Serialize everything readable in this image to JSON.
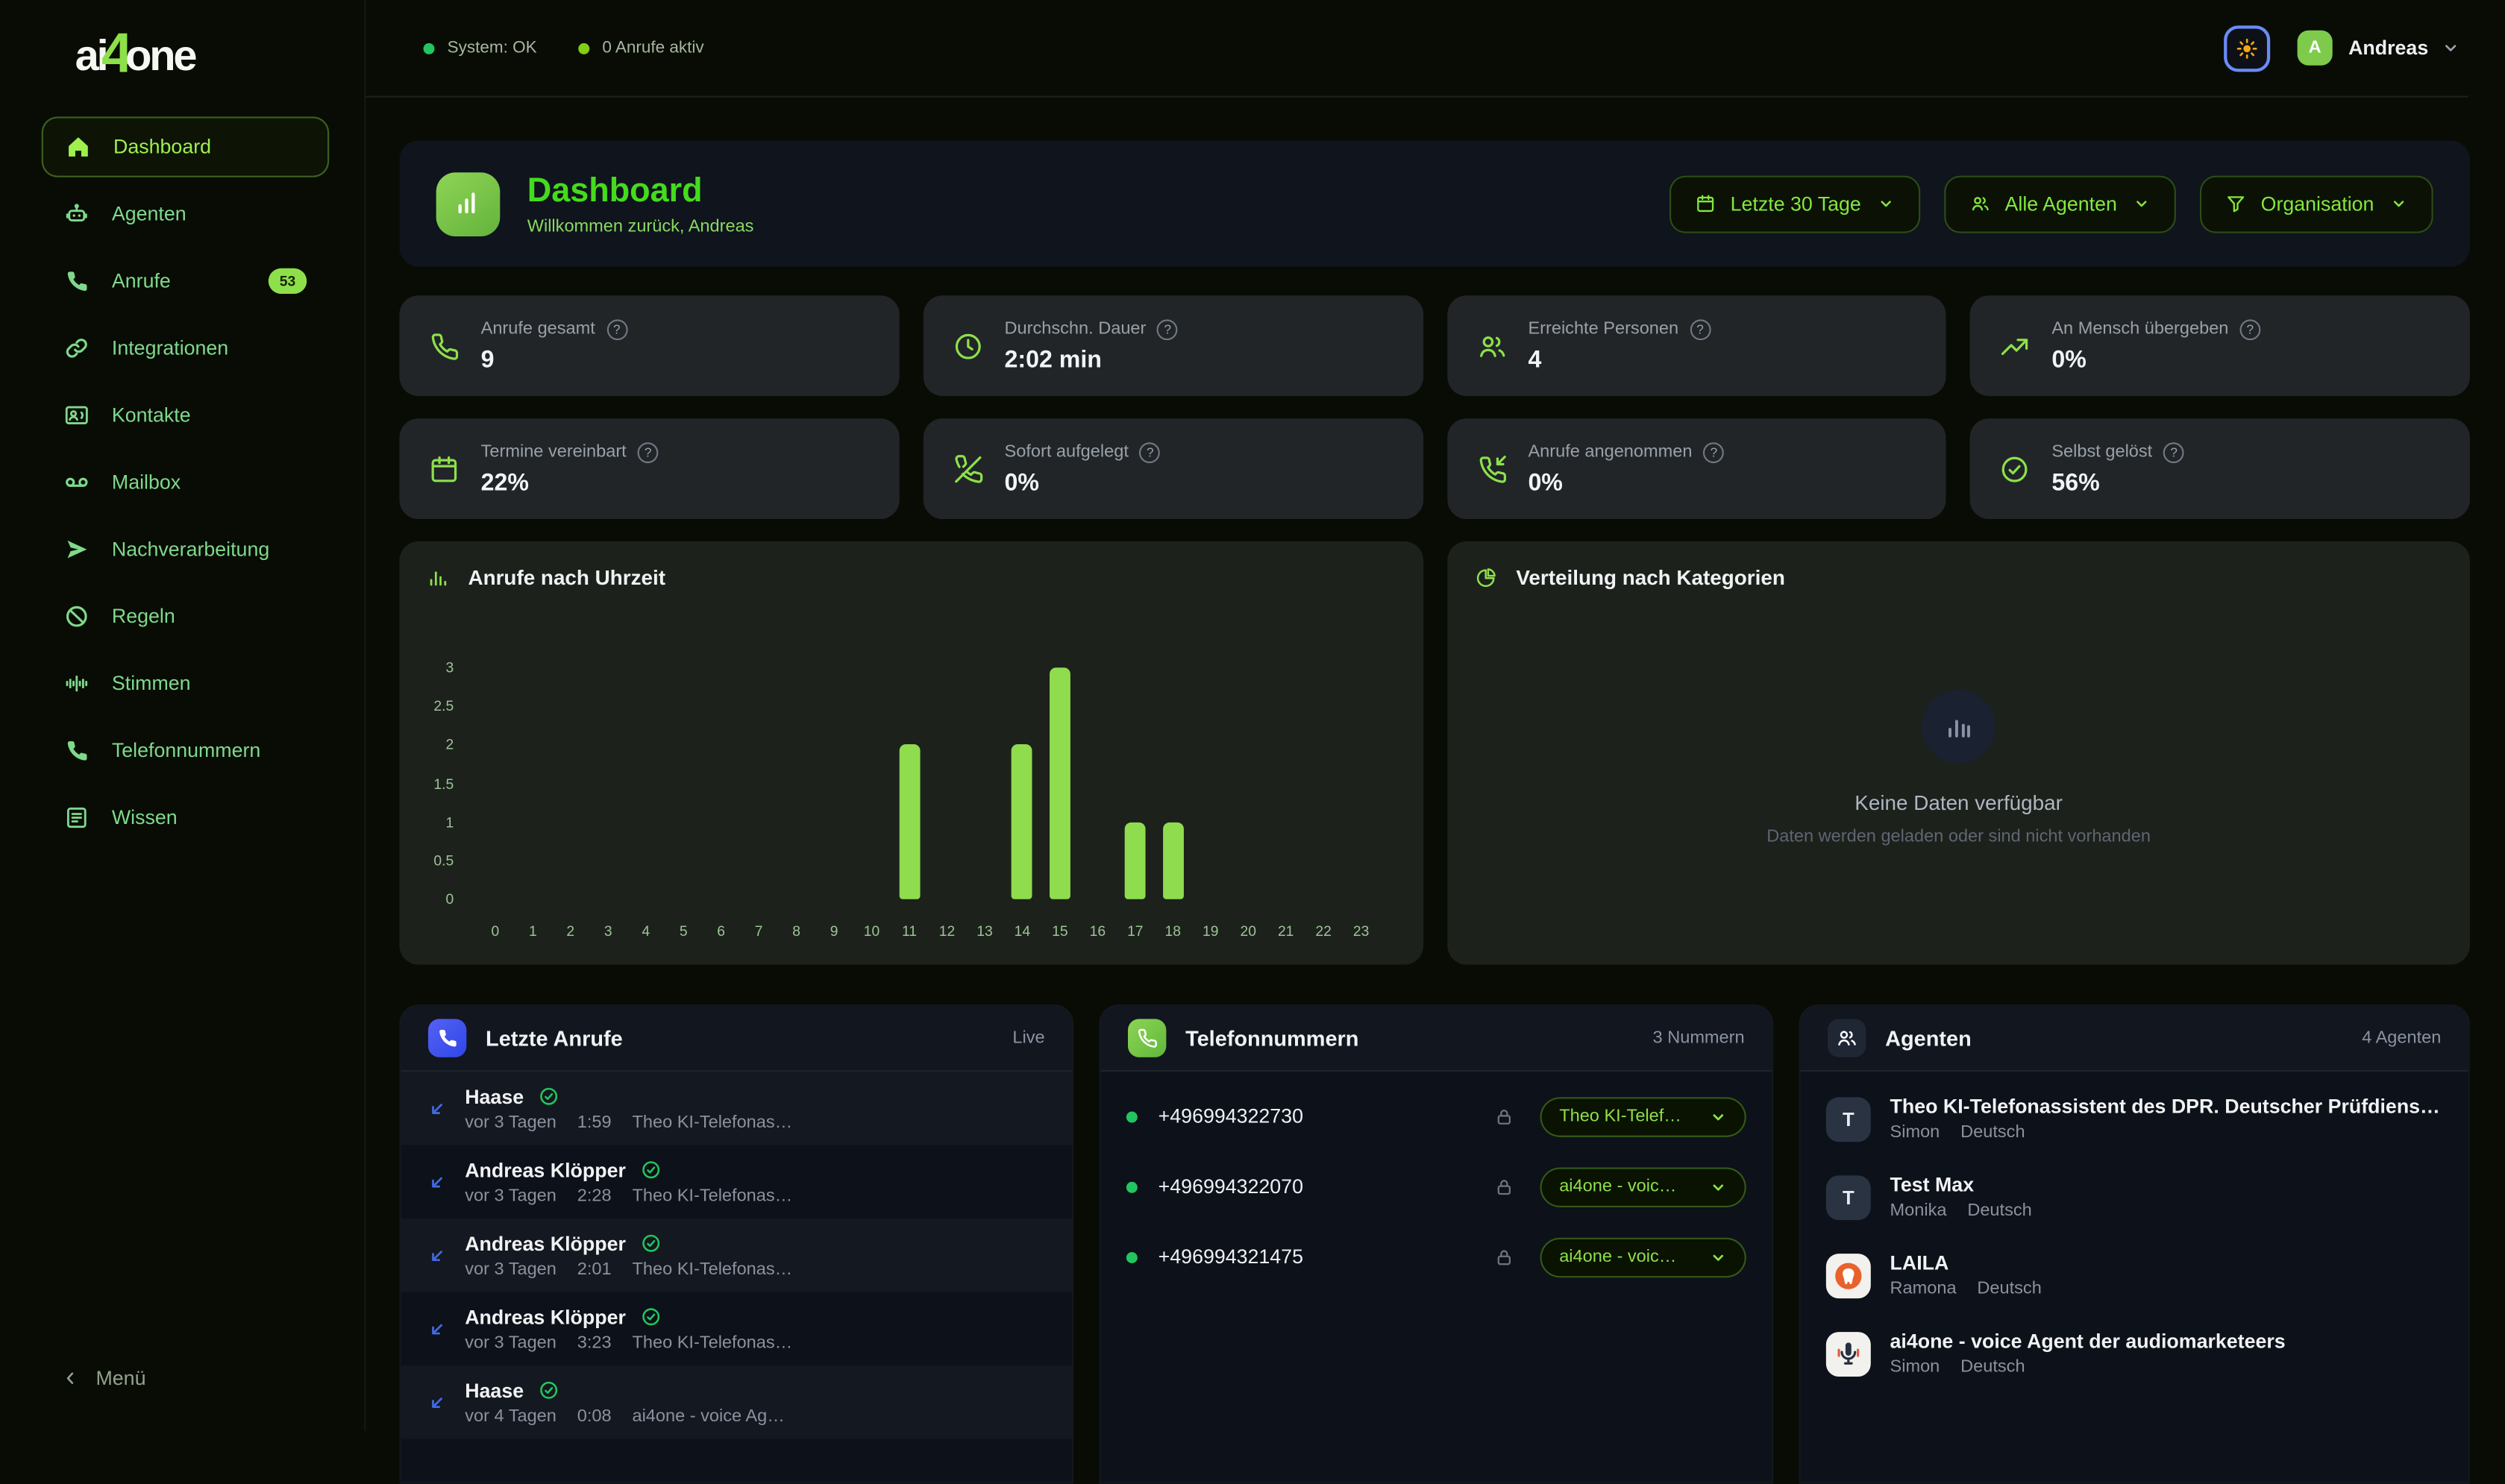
{
  "logo": {
    "part1": "ai",
    "part2": "4",
    "part3": "one"
  },
  "topbar": {
    "system_status": "System: OK",
    "active_calls": "0 Anrufe aktiv",
    "user_initial": "A",
    "user_name": "Andreas"
  },
  "sidebar": {
    "items": [
      {
        "label": "Dashboard",
        "icon": "home",
        "active": true
      },
      {
        "label": "Agenten",
        "icon": "robot"
      },
      {
        "label": "Anrufe",
        "icon": "phone",
        "badge": "53"
      },
      {
        "label": "Integrationen",
        "icon": "link"
      },
      {
        "label": "Kontakte",
        "icon": "contact-card"
      },
      {
        "label": "Mailbox",
        "icon": "voicemail"
      },
      {
        "label": "Nachverarbeitung",
        "icon": "send"
      },
      {
        "label": "Regeln",
        "icon": "ban"
      },
      {
        "label": "Stimmen",
        "icon": "waveform"
      },
      {
        "label": "Telefonnummern",
        "icon": "phone"
      },
      {
        "label": "Wissen",
        "icon": "document"
      }
    ],
    "collapse_label": "Menü"
  },
  "header": {
    "title": "Dashboard",
    "subtitle": "Willkommen zurück, Andreas",
    "filters": {
      "date_range": "Letzte 30 Tage",
      "agents": "Alle Agenten",
      "organisation": "Organisation"
    }
  },
  "ui": {
    "help_glyph": "?"
  },
  "stats": [
    {
      "label": "Anrufe gesamt",
      "value": "9"
    },
    {
      "label": "Durchschn. Dauer",
      "value": "2:02 min"
    },
    {
      "label": "Erreichte Personen",
      "value": "4"
    },
    {
      "label": "An Mensch übergeben",
      "value": "0%"
    },
    {
      "label": "Termine vereinbart",
      "value": "22%"
    },
    {
      "label": "Sofort aufgelegt",
      "value": "0%"
    },
    {
      "label": "Anrufe angenommen",
      "value": "0%"
    },
    {
      "label": "Selbst gelöst",
      "value": "56%"
    }
  ],
  "chart_card": {
    "title": "Anrufe nach Uhrzeit"
  },
  "chart_data": {
    "type": "bar",
    "title": "Anrufe nach Uhrzeit",
    "categories": [
      "0",
      "1",
      "2",
      "3",
      "4",
      "5",
      "6",
      "7",
      "8",
      "9",
      "10",
      "11",
      "12",
      "13",
      "14",
      "15",
      "16",
      "17",
      "18",
      "19",
      "20",
      "21",
      "22",
      "23"
    ],
    "values": [
      0,
      0,
      0,
      0,
      0,
      0,
      0,
      0,
      0,
      0,
      0,
      2,
      0,
      0,
      2,
      3,
      0,
      1,
      1,
      0,
      0,
      0,
      0,
      0
    ],
    "xlabel": "",
    "ylabel": "",
    "ylim": [
      0,
      3
    ],
    "yticks": [
      0,
      0.5,
      1,
      1.5,
      2,
      2.5,
      3
    ],
    "grid": false,
    "legend": false,
    "bar_color": "#8fdd4e"
  },
  "categories_card": {
    "title": "Verteilung nach Kategorien",
    "empty_title": "Keine Daten verfügbar",
    "empty_subtitle": "Daten werden geladen oder sind nicht vorhanden"
  },
  "recent_calls": {
    "title": "Letzte Anrufe",
    "status": "Live",
    "items": [
      {
        "name": "Haase",
        "ago": "vor 3 Tagen",
        "duration": "1:59",
        "agent": "Theo KI-Telefonas…"
      },
      {
        "name": "Andreas Klöpper",
        "ago": "vor 3 Tagen",
        "duration": "2:28",
        "agent": "Theo KI-Telefonas…"
      },
      {
        "name": "Andreas Klöpper",
        "ago": "vor 3 Tagen",
        "duration": "2:01",
        "agent": "Theo KI-Telefonas…"
      },
      {
        "name": "Andreas Klöpper",
        "ago": "vor 3 Tagen",
        "duration": "3:23",
        "agent": "Theo KI-Telefonas…"
      },
      {
        "name": "Haase",
        "ago": "vor 4 Tagen",
        "duration": "0:08",
        "agent": "ai4one - voice Ag…"
      }
    ]
  },
  "phone_numbers": {
    "title": "Telefonnummern",
    "count_label": "3 Nummern",
    "items": [
      {
        "number": "+496994322730",
        "assigned_agent": "Theo KI-Telef…"
      },
      {
        "number": "+496994322070",
        "assigned_agent": "ai4one - voic…"
      },
      {
        "number": "+496994321475",
        "assigned_agent": "ai4one - voic…"
      }
    ]
  },
  "agents": {
    "title": "Agenten",
    "count_label": "4 Agenten",
    "items": [
      {
        "name": "Theo KI-Telefonassistent des DPR. Deutscher Prüfdienst für Betriebss…",
        "voice": "Simon",
        "language": "Deutsch",
        "avatar": "T"
      },
      {
        "name": "Test Max",
        "voice": "Monika",
        "language": "Deutsch",
        "avatar": "T"
      },
      {
        "name": "LAILA",
        "voice": "Ramona",
        "language": "Deutsch",
        "avatar": "tooth"
      },
      {
        "name": "ai4one - voice Agent der audiomarketeers",
        "voice": "Simon",
        "language": "Deutsch",
        "avatar": "mic"
      }
    ]
  },
  "colors": {
    "page_bg": "#080c04",
    "accent_green": "#8ee04a",
    "title_green": "#45db1c",
    "sidebar_green": "#7fd98b",
    "bar_color": "#8fdd4e",
    "status_ok_dot": "#22c55e",
    "active_calls_dot": "#84cc16",
    "panel_navy": "#0d1119",
    "stat_card_grey": "#212528",
    "blue_icon": "#3f51ef",
    "sun_orange": "#f0a818",
    "theme_btn_ring": "#6b8af5"
  }
}
